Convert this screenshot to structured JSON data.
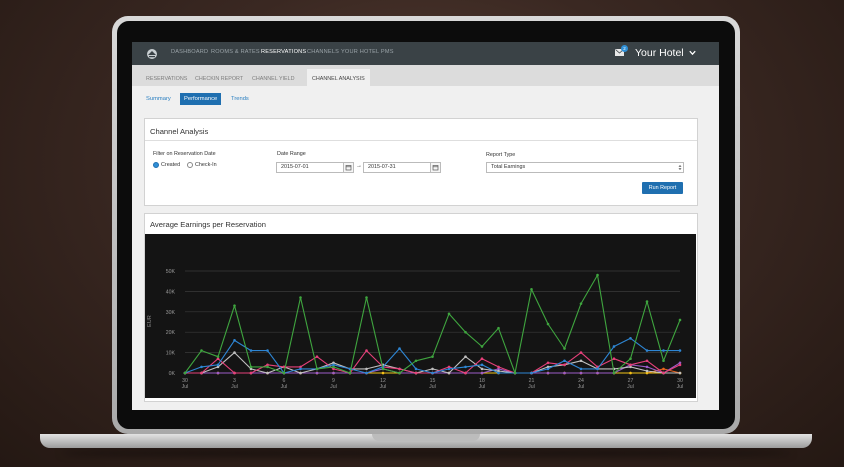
{
  "nav": {
    "items": [
      "DASHBOARD",
      "ROOMS & RATES",
      "RESERVATIONS",
      "CHANNELS",
      "YOUR HOTEL PMS"
    ],
    "active": "RESERVATIONS",
    "mail_count": "2",
    "hotel_name": "Your Hotel"
  },
  "subnav": {
    "items": [
      "RESERVATIONS",
      "CHECKIN REPORT",
      "CHANNEL YIELD",
      "CHANNEL ANALYSIS"
    ],
    "active": "CHANNEL ANALYSIS"
  },
  "pills": {
    "items": [
      "Summary",
      "Performance",
      "Trends"
    ],
    "active": "Performance"
  },
  "filters": {
    "title": "Channel Analysis",
    "filter_label": "Filter on Reservation Date",
    "radio_created": "Created",
    "radio_checkin": "Check-In",
    "date_range_label": "Date Range",
    "date_from": "2015-07-01",
    "date_arrow": "→",
    "date_to": "2015-07-31",
    "report_type_label": "Report Type",
    "report_type_value": "Total Earnings",
    "run_button": "Run Report"
  },
  "chart_panel": {
    "title": "Average Earnings per Reservation"
  },
  "chart_data": {
    "type": "line",
    "ylabel": "EUR",
    "y_ticks": [
      "0K",
      "10K",
      "20K",
      "30K",
      "40K",
      "50K"
    ],
    "ylim": [
      0,
      50000
    ],
    "x_ticks": [
      {
        "day": "30",
        "month": "Jul"
      },
      {
        "day": "3",
        "month": "Jul"
      },
      {
        "day": "6",
        "month": "Jul"
      },
      {
        "day": "9",
        "month": "Jul"
      },
      {
        "day": "12",
        "month": "Jul"
      },
      {
        "day": "15",
        "month": "Jul"
      },
      {
        "day": "18",
        "month": "Jul"
      },
      {
        "day": "21",
        "month": "Jul"
      },
      {
        "day": "24",
        "month": "Jul"
      },
      {
        "day": "27",
        "month": "Jul"
      },
      {
        "day": "30",
        "month": "Jul"
      }
    ],
    "x_count": 31,
    "grid": true,
    "colors": {
      "bg": "#141414",
      "grid": "#3a3a3a",
      "text": "#9a9a9a"
    },
    "series": [
      {
        "color": "#3fa53f",
        "values": [
          0,
          11000,
          8000,
          33000,
          3000,
          3000,
          0,
          37000,
          2000,
          3000,
          0,
          37000,
          2000,
          0,
          6000,
          8000,
          29000,
          20000,
          13000,
          22000,
          0,
          41000,
          24000,
          12000,
          34000,
          48000,
          0,
          7000,
          35000,
          6000,
          26000
        ]
      },
      {
        "color": "#2e86d4",
        "values": [
          0,
          3000,
          4000,
          16000,
          11000,
          11000,
          0,
          2000,
          2000,
          4000,
          2000,
          0,
          3000,
          12000,
          2000,
          0,
          2000,
          3000,
          4000,
          0,
          0,
          0,
          2000,
          6000,
          2000,
          2000,
          13000,
          17000,
          11000,
          11000,
          11000
        ]
      },
      {
        "color": "#e6407a",
        "values": [
          0,
          0,
          7000,
          0,
          0,
          4000,
          3000,
          3000,
          8000,
          2000,
          0,
          11000,
          3000,
          2000,
          0,
          0,
          3000,
          0,
          7000,
          3000,
          0,
          0,
          5000,
          4000,
          10000,
          3000,
          7000,
          4000,
          6000,
          0,
          4000
        ]
      },
      {
        "color": "#c0c0c0",
        "values": [
          0,
          0,
          3000,
          10000,
          2000,
          0,
          3000,
          0,
          2000,
          5000,
          2000,
          2000,
          4000,
          2000,
          0,
          2000,
          0,
          8000,
          2000,
          1000,
          0,
          0,
          3000,
          4000,
          6000,
          2000,
          2000,
          3000,
          1000,
          0,
          0
        ]
      },
      {
        "color": "#9c5cc8",
        "values": [
          0,
          0,
          0,
          0,
          0,
          0,
          0,
          0,
          0,
          0,
          0,
          0,
          2000,
          0,
          0,
          0,
          0,
          0,
          0,
          2000,
          0,
          0,
          0,
          0,
          0,
          0,
          0,
          4000,
          3000,
          0,
          5000
        ]
      },
      {
        "color": "#f2c318",
        "values": [
          0,
          0,
          0,
          0,
          0,
          0,
          0,
          0,
          0,
          0,
          0,
          0,
          0,
          0,
          0,
          0,
          0,
          0,
          0,
          0,
          0,
          0,
          0,
          0,
          0,
          0,
          0,
          0,
          0,
          0,
          0
        ]
      },
      {
        "color": "#e8641e",
        "values": [
          0,
          0,
          0,
          0,
          0,
          0,
          0,
          0,
          0,
          0,
          0,
          0,
          0,
          0,
          0,
          0,
          0,
          0,
          0,
          0,
          0,
          0,
          0,
          0,
          0,
          0,
          0,
          0,
          0,
          2000,
          0
        ]
      }
    ]
  }
}
